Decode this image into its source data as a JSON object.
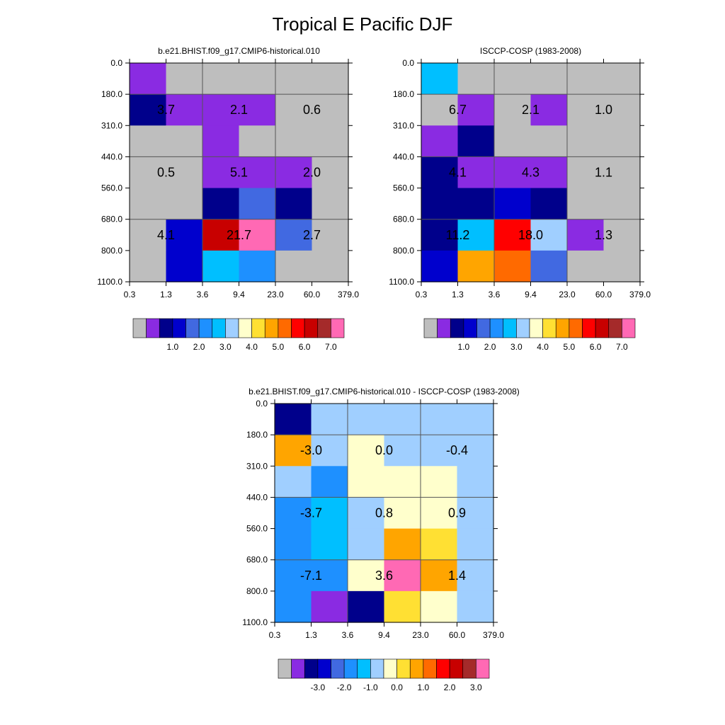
{
  "figure_title": "Tropical E Pacific DJF",
  "color_tables": {
    "abs": [
      "#bebebe",
      "#8a2be2",
      "#00008b",
      "#0000cd",
      "#4169e1",
      "#1e90ff",
      "#00bfff",
      "#a0cfff",
      "#ffffcc",
      "#ffe033",
      "#ffa500",
      "#ff6a00",
      "#ff0000",
      "#c80000",
      "#a52a2a",
      "#ff69b4"
    ],
    "diff": [
      "#bebebe",
      "#8a2be2",
      "#00008b",
      "#0000cd",
      "#4169e1",
      "#1e90ff",
      "#00bfff",
      "#a0cfff",
      "#ffffcc",
      "#ffe033",
      "#ffa500",
      "#ff6a00",
      "#ff0000",
      "#c80000",
      "#a52a2a",
      "#ff69b4"
    ]
  },
  "chart_data": [
    {
      "type": "heatmap",
      "title": "b.e21.BHIST.f09_g17.CMIP6-historical.010",
      "x_tick_labels": [
        "0.3",
        "1.3",
        "3.6",
        "9.4",
        "23.0",
        "60.0",
        "379.0"
      ],
      "y_tick_labels": [
        "0.0",
        "180.0",
        "310.0",
        "440.0",
        "560.0",
        "680.0",
        "800.0",
        "1100.0"
      ],
      "cell_colors": [
        [
          1,
          0,
          0,
          0,
          0,
          0
        ],
        [
          2,
          1,
          1,
          1,
          0,
          0
        ],
        [
          0,
          0,
          1,
          0,
          0,
          0
        ],
        [
          0,
          0,
          1,
          1,
          1,
          0
        ],
        [
          0,
          0,
          2,
          4,
          2,
          0
        ],
        [
          0,
          3,
          13,
          15,
          4,
          0
        ],
        [
          0,
          3,
          6,
          5,
          0,
          0
        ]
      ],
      "block_labels": [
        {
          "row": 0,
          "col": 0,
          "text": "3.7"
        },
        {
          "row": 0,
          "col": 1,
          "text": "2.1"
        },
        {
          "row": 0,
          "col": 2,
          "text": "0.6"
        },
        {
          "row": 1,
          "col": 0,
          "text": "0.5"
        },
        {
          "row": 1,
          "col": 1,
          "text": "5.1"
        },
        {
          "row": 1,
          "col": 2,
          "text": "2.0"
        },
        {
          "row": 2,
          "col": 0,
          "text": "4.1"
        },
        {
          "row": 2,
          "col": 1,
          "text": "21.7"
        },
        {
          "row": 2,
          "col": 2,
          "text": "2.7"
        }
      ],
      "colorbar": {
        "table": "abs",
        "labels": [
          "1.0",
          "2.0",
          "3.0",
          "4.0",
          "5.0",
          "6.0",
          "7.0"
        ]
      }
    },
    {
      "type": "heatmap",
      "title": "ISCCP-COSP (1983-2008)",
      "x_tick_labels": [
        "0.3",
        "1.3",
        "3.6",
        "9.4",
        "23.0",
        "60.0",
        "379.0"
      ],
      "y_tick_labels": [
        "0.0",
        "180.0",
        "310.0",
        "440.0",
        "560.0",
        "680.0",
        "800.0",
        "1100.0"
      ],
      "cell_colors": [
        [
          6,
          0,
          0,
          0,
          0,
          0
        ],
        [
          0,
          1,
          0,
          1,
          0,
          0
        ],
        [
          1,
          2,
          0,
          0,
          0,
          0
        ],
        [
          2,
          1,
          1,
          1,
          0,
          0
        ],
        [
          2,
          2,
          3,
          2,
          0,
          0
        ],
        [
          2,
          6,
          12,
          7,
          1,
          0
        ],
        [
          3,
          10,
          11,
          4,
          0,
          0
        ]
      ],
      "block_labels": [
        {
          "row": 0,
          "col": 0,
          "text": "6.7"
        },
        {
          "row": 0,
          "col": 1,
          "text": "2.1"
        },
        {
          "row": 0,
          "col": 2,
          "text": "1.0"
        },
        {
          "row": 1,
          "col": 0,
          "text": "4.1"
        },
        {
          "row": 1,
          "col": 1,
          "text": "4.3"
        },
        {
          "row": 1,
          "col": 2,
          "text": "1.1"
        },
        {
          "row": 2,
          "col": 0,
          "text": "11.2"
        },
        {
          "row": 2,
          "col": 1,
          "text": "18.0"
        },
        {
          "row": 2,
          "col": 2,
          "text": "1.3"
        }
      ],
      "colorbar": {
        "table": "abs",
        "labels": [
          "1.0",
          "2.0",
          "3.0",
          "4.0",
          "5.0",
          "6.0",
          "7.0"
        ]
      }
    },
    {
      "type": "heatmap",
      "title": "b.e21.BHIST.f09_g17.CMIP6-historical.010 - ISCCP-COSP (1983-2008)",
      "x_tick_labels": [
        "0.3",
        "1.3",
        "3.6",
        "9.4",
        "23.0",
        "60.0",
        "379.0"
      ],
      "y_tick_labels": [
        "0.0",
        "180.0",
        "310.0",
        "440.0",
        "560.0",
        "680.0",
        "800.0",
        "1100.0"
      ],
      "cell_colors": [
        [
          2,
          7,
          7,
          7,
          7,
          7
        ],
        [
          10,
          7,
          8,
          7,
          7,
          7
        ],
        [
          7,
          5,
          8,
          8,
          8,
          7
        ],
        [
          5,
          6,
          7,
          8,
          8,
          7
        ],
        [
          5,
          6,
          7,
          10,
          9,
          7
        ],
        [
          5,
          5,
          8,
          15,
          10,
          7
        ],
        [
          5,
          1,
          2,
          9,
          8,
          7
        ]
      ],
      "block_labels": [
        {
          "row": 0,
          "col": 0,
          "text": "-3.0"
        },
        {
          "row": 0,
          "col": 1,
          "text": "0.0"
        },
        {
          "row": 0,
          "col": 2,
          "text": "-0.4"
        },
        {
          "row": 1,
          "col": 0,
          "text": "-3.7"
        },
        {
          "row": 1,
          "col": 1,
          "text": "0.8"
        },
        {
          "row": 1,
          "col": 2,
          "text": "0.9"
        },
        {
          "row": 2,
          "col": 0,
          "text": "-7.1"
        },
        {
          "row": 2,
          "col": 1,
          "text": "3.6"
        },
        {
          "row": 2,
          "col": 2,
          "text": "1.4"
        }
      ],
      "colorbar": {
        "table": "diff",
        "labels": [
          "-3.0",
          "-2.0",
          "-1.0",
          "0.0",
          "1.0",
          "2.0",
          "3.0"
        ]
      }
    }
  ]
}
